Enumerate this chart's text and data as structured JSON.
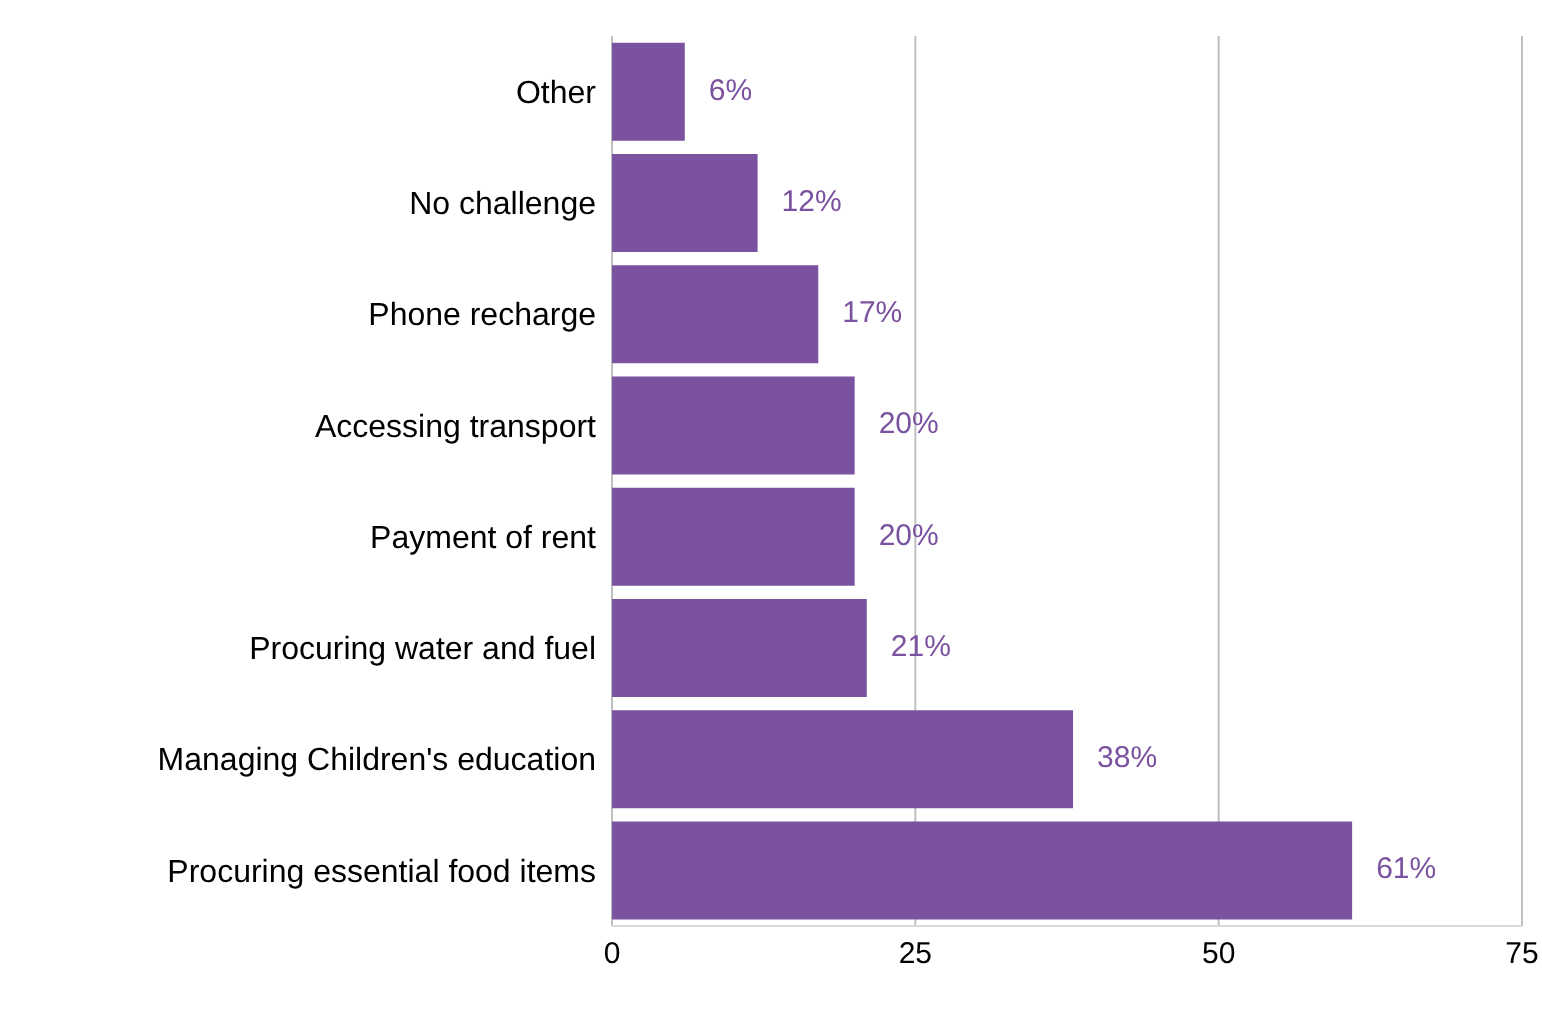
{
  "chart_data": {
    "type": "bar",
    "orientation": "horizontal",
    "categories": [
      "Other",
      "No challenge",
      "Phone recharge",
      "Accessing transport",
      "Payment of rent",
      "Procuring water and fuel",
      "Managing Children's education",
      "Procuring essential food items"
    ],
    "values": [
      6,
      12,
      17,
      20,
      20,
      21,
      38,
      61
    ],
    "value_labels": [
      "6%",
      "12%",
      "17%",
      "20%",
      "20%",
      "21%",
      "38%",
      "61%"
    ],
    "color": "#7b52a0",
    "xlim": [
      0,
      75
    ],
    "xticks": [
      0,
      25,
      50,
      75
    ],
    "grid": "x",
    "legend": false
  }
}
